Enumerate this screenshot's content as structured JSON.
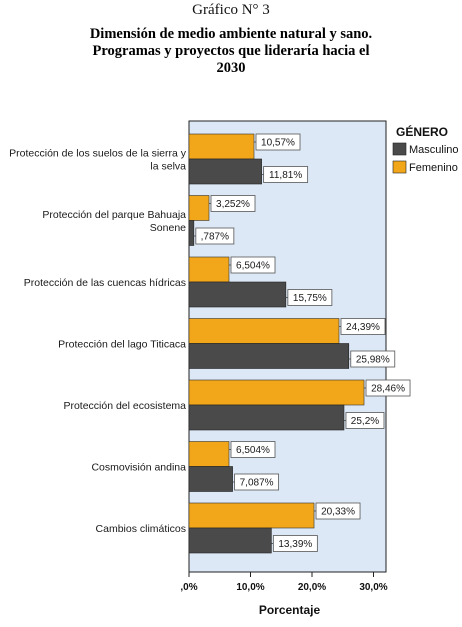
{
  "header": {
    "pretitle": "Gráfico N° 3",
    "title_lines": [
      "Dimensión de medio ambiente natural y sano.",
      "Programas y proyectos que liderarίa hacia el",
      "2030"
    ]
  },
  "colors": {
    "plot_background": "#dce8f5",
    "masculino": "#4a4a4a",
    "femenino": "#f2a71b",
    "label_box": "#ffffff"
  },
  "chart_data": {
    "type": "bar",
    "orientation": "horizontal",
    "categories": [
      [
        "Protección de los suelos de la sierra y",
        "la selva"
      ],
      [
        "Protección del parque Bahuaja",
        "Sonene"
      ],
      [
        "Protección de las cuencas hídricas"
      ],
      [
        "Protección del lago Titicaca"
      ],
      [
        "Protección del ecosistema"
      ],
      [
        "Cosmovisión andina"
      ],
      [
        "Cambios climáticos"
      ]
    ],
    "series": [
      {
        "name": "Femenino",
        "values": [
          10.57,
          3.252,
          6.504,
          24.39,
          28.46,
          6.504,
          20.33
        ],
        "labels": [
          "10,57%",
          "3,252%",
          "6,504%",
          "24,39%",
          "28,46%",
          "6,504%",
          "20,33%"
        ]
      },
      {
        "name": "Masculino",
        "values": [
          11.81,
          0.787,
          15.75,
          25.98,
          25.2,
          7.087,
          13.39
        ],
        "labels": [
          "11,81%",
          ",787%",
          "15,75%",
          "25,98%",
          "25,2%",
          "7,087%",
          "13,39%"
        ]
      }
    ],
    "x_ticks": [
      0,
      10,
      20,
      30
    ],
    "x_tick_labels": [
      ",0%",
      "10,0%",
      "20,0%",
      "30,0%"
    ],
    "xlim": [
      0,
      31.5
    ],
    "xlabel": "Porcentaje",
    "ylabel": "",
    "legend": {
      "title": "GÉNERO",
      "position": "top-right",
      "items": [
        "Masculino",
        "Femenino"
      ]
    },
    "grid": false
  }
}
